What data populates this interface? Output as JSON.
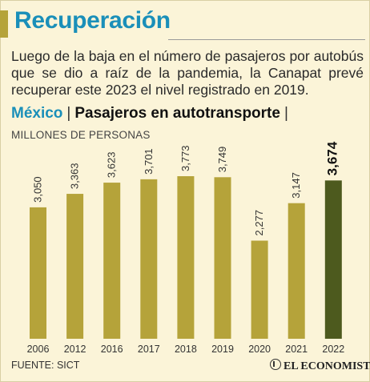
{
  "title": "Recuperación",
  "subtitle": "Luego de la baja en el número de pasajeros por autobús que se dio a raíz de la pandemia, la Canapat prevé recuperar este 2023 el nivel registrado en 2019.",
  "header": {
    "country": "México",
    "separator": "|",
    "title": "Pasajeros en autotransporte",
    "unit": "MILLONES DE PERSONAS"
  },
  "source": "FUENTE: SICT",
  "logo": "EL ECONOMISTA",
  "colors": {
    "bar": "#b5a33a",
    "highlight": "#4d5a1e",
    "title": "#1a8fb9",
    "background": "#fbf4d8"
  },
  "chart_data": {
    "type": "bar",
    "categories": [
      "2006",
      "2012",
      "2016",
      "2017",
      "2018",
      "2019",
      "2020",
      "2021",
      "2022"
    ],
    "values": [
      3050,
      3363,
      3623,
      3701,
      3773,
      3749,
      2277,
      3147,
      3674
    ],
    "labels": [
      "3,050",
      "3,363",
      "3,623",
      "3,701",
      "3,773",
      "3,749",
      "2,277",
      "3,147",
      "3,674"
    ],
    "highlight_index": 8,
    "title": "Pasajeros en autotransporte",
    "ylabel": "MILLONES DE PERSONAS",
    "ylim": [
      0,
      3773
    ],
    "grid": false
  }
}
